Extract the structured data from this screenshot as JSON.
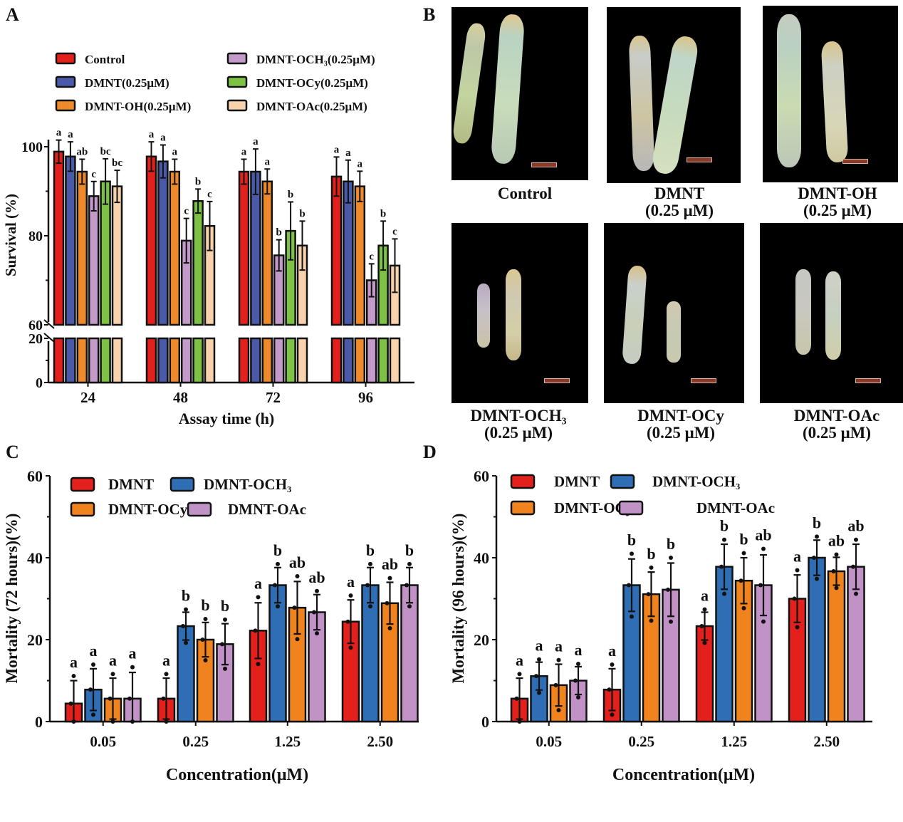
{
  "panels": {
    "A": "A",
    "B": "B",
    "C": "C",
    "D": "D"
  },
  "colors": {
    "red": "#e3201c",
    "blue_a": "#4a5aa8",
    "orange": "#ee8a2b",
    "lilac": "#c39ac9",
    "green": "#7dc242",
    "peach": "#f8d2ac",
    "blue_cd": "#2f6db5",
    "orange_cd": "#f0831e",
    "lilac_cd": "#c192c6"
  },
  "photos": [
    {
      "label_line1": "Control",
      "label_line2": ""
    },
    {
      "label_line1": "DMNT",
      "label_line2": "(0.25 μM)"
    },
    {
      "label_line1": "DMNT-OH",
      "label_line2": "(0.25 μM)"
    },
    {
      "label_line1": "DMNT-OCH₃",
      "label_line2": "(0.25 μM)"
    },
    {
      "label_line1": "DMNT-OCy",
      "label_line2": "(0.25 μM)"
    },
    {
      "label_line1": "DMNT-OAc",
      "label_line2": "(0.25 μM)"
    }
  ],
  "chart_data": [
    {
      "id": "A",
      "type": "bar",
      "title": "",
      "xlabel": "Assay time (h)",
      "ylabel": "Survival (%)",
      "categories": [
        "24",
        "48",
        "72",
        "96"
      ],
      "y_axis_break": {
        "lower": [
          0,
          20
        ],
        "upper": [
          60,
          100
        ]
      },
      "yticks_lower": [
        0,
        20
      ],
      "yticks_upper": [
        60,
        80,
        100
      ],
      "legend_position": "top",
      "series": [
        {
          "name": "Control",
          "color": "#e3201c",
          "values": [
            98.9,
            97.8,
            94.4,
            93.3
          ],
          "errors": [
            2.6,
            3.3,
            2.8,
            4.4
          ],
          "letters": [
            "a",
            "a",
            "a",
            "a"
          ]
        },
        {
          "name": "DMNT(0.25μM)",
          "color": "#4a5aa8",
          "values": [
            97.8,
            96.7,
            94.4,
            92.2
          ],
          "errors": [
            3.3,
            3.7,
            5.1,
            4.8
          ],
          "letters": [
            "a",
            "a",
            "a",
            "a"
          ]
        },
        {
          "name": "DMNT-OH(0.25μM)",
          "color": "#ee8a2b",
          "values": [
            94.4,
            94.4,
            92.2,
            91.1
          ],
          "errors": [
            2.8,
            2.8,
            2.8,
            3.4
          ],
          "letters": [
            "ab",
            "a",
            "a",
            "a"
          ]
        },
        {
          "name": "DMNT-OCH₃(0.25μM)",
          "color": "#c39ac9",
          "values": [
            88.9,
            78.9,
            75.6,
            70.0
          ],
          "errors": [
            3.3,
            5.0,
            3.5,
            3.7
          ],
          "letters": [
            "c",
            "c",
            "b",
            "c"
          ]
        },
        {
          "name": "DMNT-OCy(0.25μM)",
          "color": "#7dc242",
          "values": [
            92.2,
            87.8,
            81.1,
            77.8
          ],
          "errors": [
            5.1,
            2.7,
            6.5,
            5.5
          ],
          "letters": [
            "bc",
            "b",
            "b",
            "b"
          ]
        },
        {
          "name": "DMNT-OAc(0.25μM)",
          "color": "#f8d2ac",
          "values": [
            91.1,
            82.2,
            77.8,
            73.3
          ],
          "errors": [
            3.6,
            5.5,
            5.5,
            6.0
          ],
          "letters": [
            "bc",
            "c",
            "b",
            "c"
          ]
        }
      ]
    },
    {
      "id": "C",
      "type": "bar",
      "title": "",
      "xlabel": "Concentration(μM)",
      "ylabel": "Mortality (72 hours)(%)",
      "categories": [
        "0.05",
        "0.25",
        "1.25",
        "2.50"
      ],
      "ylim": [
        0,
        60
      ],
      "yticks": [
        0,
        20,
        40,
        60
      ],
      "legend_position": "top-left",
      "series": [
        {
          "name": "DMNT",
          "color": "#e3201c",
          "values": [
            4.4,
            5.6,
            22.2,
            24.4
          ],
          "errors": [
            5.6,
            5.0,
            6.8,
            5.3
          ],
          "letters": [
            "a",
            "a",
            "a",
            "a"
          ]
        },
        {
          "name": "DMNT-OCH₃",
          "color": "#2f6db5",
          "values": [
            7.8,
            23.3,
            33.3,
            33.3
          ],
          "errors": [
            5.1,
            3.4,
            4.3,
            4.3
          ],
          "letters": [
            "a",
            "b",
            "b",
            "b"
          ]
        },
        {
          "name": "DMNT-OCy",
          "color": "#f0831e",
          "values": [
            5.6,
            20.0,
            27.8,
            28.9
          ],
          "errors": [
            5.0,
            4.2,
            6.4,
            5.1
          ],
          "letters": [
            "a",
            "b",
            "ab",
            "ab"
          ]
        },
        {
          "name": "DMNT-OAc",
          "color": "#c192c6",
          "values": [
            5.6,
            18.9,
            26.7,
            33.3
          ],
          "errors": [
            6.4,
            5.0,
            4.3,
            4.3
          ],
          "letters": [
            "a",
            "b",
            "ab",
            "b"
          ]
        }
      ]
    },
    {
      "id": "D",
      "type": "bar",
      "title": "",
      "xlabel": "Concentration(μM)",
      "ylabel": "Mortality (96 hours)(%)",
      "categories": [
        "0.05",
        "0.25",
        "1.25",
        "2.50"
      ],
      "ylim": [
        0,
        60
      ],
      "yticks": [
        0,
        20,
        40,
        60
      ],
      "legend_position": "top-left",
      "series": [
        {
          "name": "DMNT",
          "color": "#e3201c",
          "values": [
            5.6,
            7.8,
            23.3,
            30.0
          ],
          "errors": [
            5.0,
            5.1,
            3.4,
            5.8
          ],
          "letters": [
            "a",
            "a",
            "a",
            "a"
          ]
        },
        {
          "name": "DMNT-OCH₃",
          "color": "#2f6db5",
          "values": [
            11.1,
            33.3,
            37.8,
            40.0
          ],
          "errors": [
            3.4,
            6.4,
            5.5,
            4.3
          ],
          "letters": [
            "a",
            "b",
            "b",
            "b"
          ]
        },
        {
          "name": "DMNT-OCy",
          "color": "#f0831e",
          "values": [
            8.9,
            31.1,
            34.4,
            36.7
          ],
          "errors": [
            5.1,
            5.4,
            5.6,
            3.4
          ],
          "letters": [
            "a",
            "b",
            "b",
            "ab"
          ]
        },
        {
          "name": "DMNT-OAc",
          "color": "#c192c6",
          "values": [
            10.0,
            32.2,
            33.3,
            37.8
          ],
          "errors": [
            3.4,
            6.5,
            7.4,
            5.5
          ],
          "letters": [
            "a",
            "b",
            "ab",
            "ab"
          ]
        }
      ]
    }
  ]
}
